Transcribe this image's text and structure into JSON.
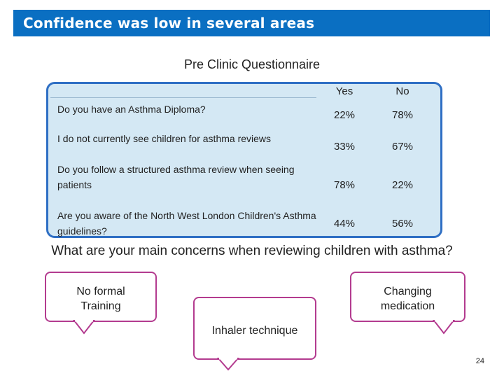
{
  "header": {
    "title": "Confidence was low in several areas"
  },
  "survey": {
    "title": "Pre Clinic Questionnaire",
    "columns": [
      "Yes",
      "No"
    ],
    "rows": [
      {
        "question": "Do you have an Asthma Diploma?",
        "yes": "22%",
        "no": "78%"
      },
      {
        "question": "I do not currently see children for asthma reviews",
        "yes": "33%",
        "no": "67%"
      },
      {
        "question": "Do you follow a structured asthma review when seeing patients",
        "yes": "78%",
        "no": "22%"
      },
      {
        "question": "Are you aware of the North West London Children's Asthma guidelines?",
        "yes": "44%",
        "no": "56%"
      }
    ]
  },
  "concerns": {
    "question": "What are your main concerns when reviewing children with asthma?",
    "bubbles": [
      "No formal Training",
      "Changing medication",
      "Inhaler technique"
    ]
  },
  "colors": {
    "title_bar": "#0a6fc2",
    "panel_fill": "#d4e8f4",
    "panel_border": "#2f6fc4",
    "bubble_border": "#b33b8f"
  },
  "page": {
    "number": "24"
  }
}
